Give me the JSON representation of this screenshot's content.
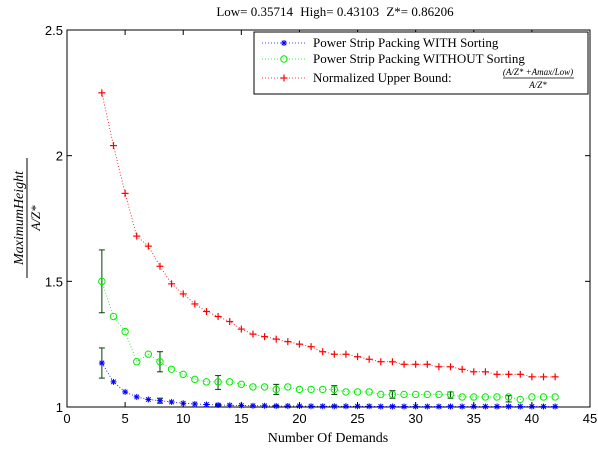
{
  "chart_data": {
    "type": "line",
    "title": "Low= 0.35714 High= 0.43103 Z*= 0.86206",
    "xlabel": "Number Of Demands",
    "ylabel": "MaximumHeight / (A/Z*)",
    "ylabel_num": "MaximumHeight",
    "ylabel_den": "A/Z*",
    "xlim": [
      0,
      45
    ],
    "ylim": [
      1,
      2.5
    ],
    "xticks": [
      0,
      5,
      10,
      15,
      20,
      25,
      30,
      35,
      40,
      45
    ],
    "yticks": [
      1,
      1.5,
      2,
      2.5
    ],
    "legend_position": "top-right",
    "grid": false,
    "series": [
      {
        "name": "Power Strip Packing WITH Sorting",
        "color": "#0000ff",
        "marker": "asterisk",
        "line_style": "dotted",
        "x": [
          3,
          4,
          5,
          6,
          7,
          8,
          9,
          10,
          11,
          12,
          13,
          14,
          15,
          16,
          17,
          18,
          19,
          20,
          21,
          22,
          23,
          24,
          25,
          26,
          27,
          28,
          29,
          30,
          31,
          32,
          33,
          34,
          35,
          36,
          37,
          38,
          39,
          40,
          41,
          42
        ],
        "y": [
          1.175,
          1.1,
          1.06,
          1.04,
          1.03,
          1.025,
          1.02,
          1.015,
          1.012,
          1.01,
          1.008,
          1.007,
          1.006,
          1.005,
          1.005,
          1.004,
          1.004,
          1.004,
          1.003,
          1.003,
          1.003,
          1.003,
          1.003,
          1.003,
          1.002,
          1.002,
          1.002,
          1.002,
          1.002,
          1.002,
          1.002,
          1.002,
          1.002,
          1.002,
          1.002,
          1.002,
          1.002,
          1.002,
          1.002,
          1.002
        ],
        "errorbars": [
          {
            "x": 3,
            "y": 1.175,
            "low": 1.115,
            "high": 1.235
          },
          {
            "x": 8,
            "y": 1.025,
            "low": 1.015,
            "high": 1.035
          },
          {
            "x": 13,
            "y": 1.008,
            "low": 1.004,
            "high": 1.012
          },
          {
            "x": 18,
            "y": 1.004,
            "low": 1.002,
            "high": 1.006
          },
          {
            "x": 23,
            "y": 1.003,
            "low": 1.001,
            "high": 1.005
          },
          {
            "x": 28,
            "y": 1.002,
            "low": 1.0,
            "high": 1.004
          },
          {
            "x": 33,
            "y": 1.002,
            "low": 1.0,
            "high": 1.004
          },
          {
            "x": 38,
            "y": 1.002,
            "low": 1.0,
            "high": 1.004
          }
        ]
      },
      {
        "name": "Power Strip Packing WITHOUT Sorting",
        "color": "#00ee00",
        "marker": "circle",
        "line_style": "dotted",
        "x": [
          3,
          4,
          5,
          6,
          7,
          8,
          9,
          10,
          11,
          12,
          13,
          14,
          15,
          16,
          17,
          18,
          19,
          20,
          21,
          22,
          23,
          24,
          25,
          26,
          27,
          28,
          29,
          30,
          31,
          32,
          33,
          34,
          35,
          36,
          37,
          38,
          39,
          40,
          41,
          42
        ],
        "y": [
          1.5,
          1.36,
          1.3,
          1.18,
          1.21,
          1.18,
          1.15,
          1.13,
          1.11,
          1.1,
          1.1,
          1.1,
          1.09,
          1.08,
          1.08,
          1.07,
          1.08,
          1.07,
          1.07,
          1.07,
          1.07,
          1.06,
          1.06,
          1.06,
          1.05,
          1.05,
          1.05,
          1.05,
          1.05,
          1.05,
          1.05,
          1.04,
          1.04,
          1.04,
          1.04,
          1.04,
          1.03,
          1.04,
          1.04,
          1.04
        ],
        "errorbars": [
          {
            "x": 3,
            "y": 1.5,
            "low": 1.375,
            "high": 1.625
          },
          {
            "x": 8,
            "y": 1.18,
            "low": 1.14,
            "high": 1.22
          },
          {
            "x": 13,
            "y": 1.1,
            "low": 1.07,
            "high": 1.125
          },
          {
            "x": 18,
            "y": 1.07,
            "low": 1.05,
            "high": 1.09
          },
          {
            "x": 23,
            "y": 1.07,
            "low": 1.05,
            "high": 1.085
          },
          {
            "x": 28,
            "y": 1.05,
            "low": 1.035,
            "high": 1.065
          },
          {
            "x": 33,
            "y": 1.05,
            "low": 1.035,
            "high": 1.06
          },
          {
            "x": 38,
            "y": 1.03,
            "low": 1.02,
            "high": 1.045
          }
        ]
      },
      {
        "name": "Normalized Upper Bound: ((A/Z*+Amax/Low))/(A/Z*)",
        "color": "#ff0000",
        "marker": "plus",
        "line_style": "dotted",
        "x": [
          3,
          4,
          5,
          6,
          7,
          8,
          9,
          10,
          11,
          12,
          13,
          14,
          15,
          16,
          17,
          18,
          19,
          20,
          21,
          22,
          23,
          24,
          25,
          26,
          27,
          28,
          29,
          30,
          31,
          32,
          33,
          34,
          35,
          36,
          37,
          38,
          39,
          40,
          41,
          42
        ],
        "y": [
          2.25,
          2.04,
          1.85,
          1.68,
          1.64,
          1.56,
          1.49,
          1.45,
          1.41,
          1.38,
          1.36,
          1.34,
          1.31,
          1.29,
          1.28,
          1.27,
          1.26,
          1.25,
          1.24,
          1.22,
          1.21,
          1.21,
          1.2,
          1.19,
          1.18,
          1.18,
          1.17,
          1.17,
          1.17,
          1.16,
          1.16,
          1.15,
          1.14,
          1.14,
          1.13,
          1.13,
          1.13,
          1.12,
          1.12,
          1.12
        ]
      }
    ]
  },
  "legend": {
    "entries": [
      {
        "label": "Power Strip Packing WITH Sorting"
      },
      {
        "label": "Power Strip Packing WITHOUT Sorting"
      },
      {
        "label_prefix": "Normalized Upper Bound:",
        "frac_num": "(A/Z* +Amax/Low)",
        "frac_den": "A/Z*"
      }
    ]
  },
  "title_parts": {
    "low_label": "Low= 0.35714",
    "high_label": "High= 0.43103",
    "z_label": "Z*= 0.86206"
  }
}
